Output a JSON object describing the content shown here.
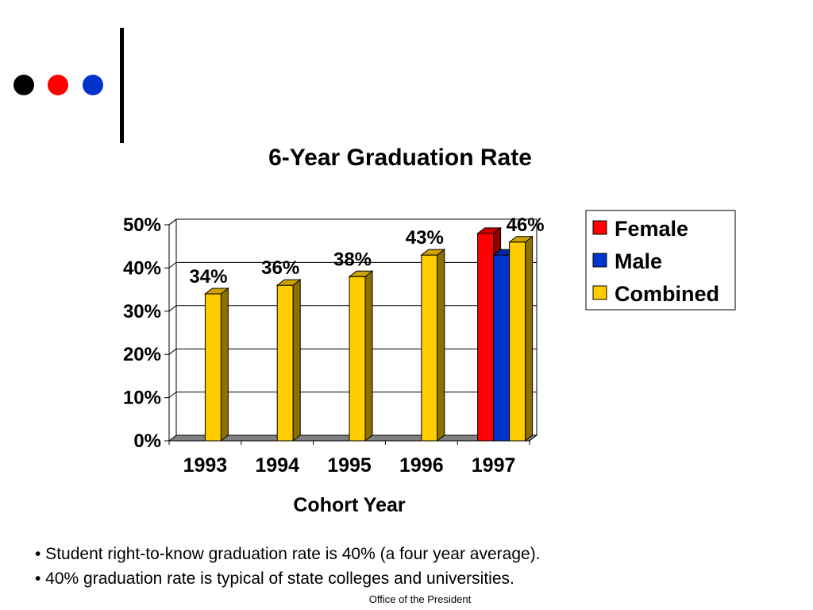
{
  "decor": {
    "dot_colors": [
      "#000000",
      "#ff0000",
      "#0033cc"
    ]
  },
  "chart_data": {
    "type": "bar",
    "title": "6-Year Graduation Rate",
    "xlabel": "Cohort Year",
    "ylabel": "",
    "categories": [
      "1993",
      "1994",
      "1995",
      "1996",
      "1997"
    ],
    "ylim": [
      0,
      50
    ],
    "yticks": [
      "0%",
      "10%",
      "20%",
      "30%",
      "40%",
      "50%"
    ],
    "grid": true,
    "legend_position": "top-right",
    "series": [
      {
        "name": "Female",
        "color": "#ff0000",
        "values": [
          null,
          null,
          null,
          null,
          48
        ]
      },
      {
        "name": "Male",
        "color": "#0033cc",
        "values": [
          null,
          null,
          null,
          null,
          43
        ]
      },
      {
        "name": "Combined",
        "color": "#ffcc00",
        "values": [
          34,
          36,
          38,
          43,
          46
        ]
      }
    ],
    "data_labels": [
      "34%",
      "36%",
      "38%",
      "43%",
      "46%"
    ]
  },
  "bullets": [
    "• Student right-to-know graduation rate is 40% (a four year average).",
    "• 40% graduation rate is typical of state colleges and universities."
  ],
  "footer": "Office of the President"
}
